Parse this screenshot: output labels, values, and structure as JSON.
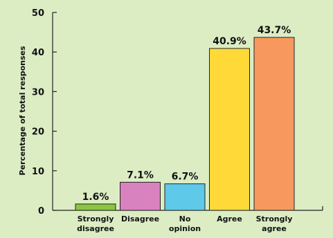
{
  "chart_data": {
    "type": "bar",
    "categories": [
      [
        "Strongly",
        "disagree"
      ],
      [
        "Disagree"
      ],
      [
        "No",
        "opinion"
      ],
      [
        "Agree"
      ],
      [
        "Strongly",
        "agree"
      ]
    ],
    "values": [
      1.6,
      7.1,
      6.7,
      40.9,
      43.7
    ],
    "value_labels": [
      "1.6%",
      "7.1%",
      "6.7%",
      "40.9%",
      "43.7%"
    ],
    "bar_colors": [
      "#8cc63f",
      "#d982c0",
      "#5ec9e8",
      "#ffd938",
      "#f7995e"
    ],
    "ylabel": "Percentage of total responses",
    "xlabel": "",
    "title": "",
    "ylim": [
      0,
      50
    ],
    "yticks": [
      "0",
      "10",
      "20",
      "30",
      "40",
      "50"
    ],
    "grid": false,
    "legend": "none"
  },
  "colors": {
    "background": "#dcedc4",
    "axis": "#222222",
    "bar_outline": "#222222"
  }
}
